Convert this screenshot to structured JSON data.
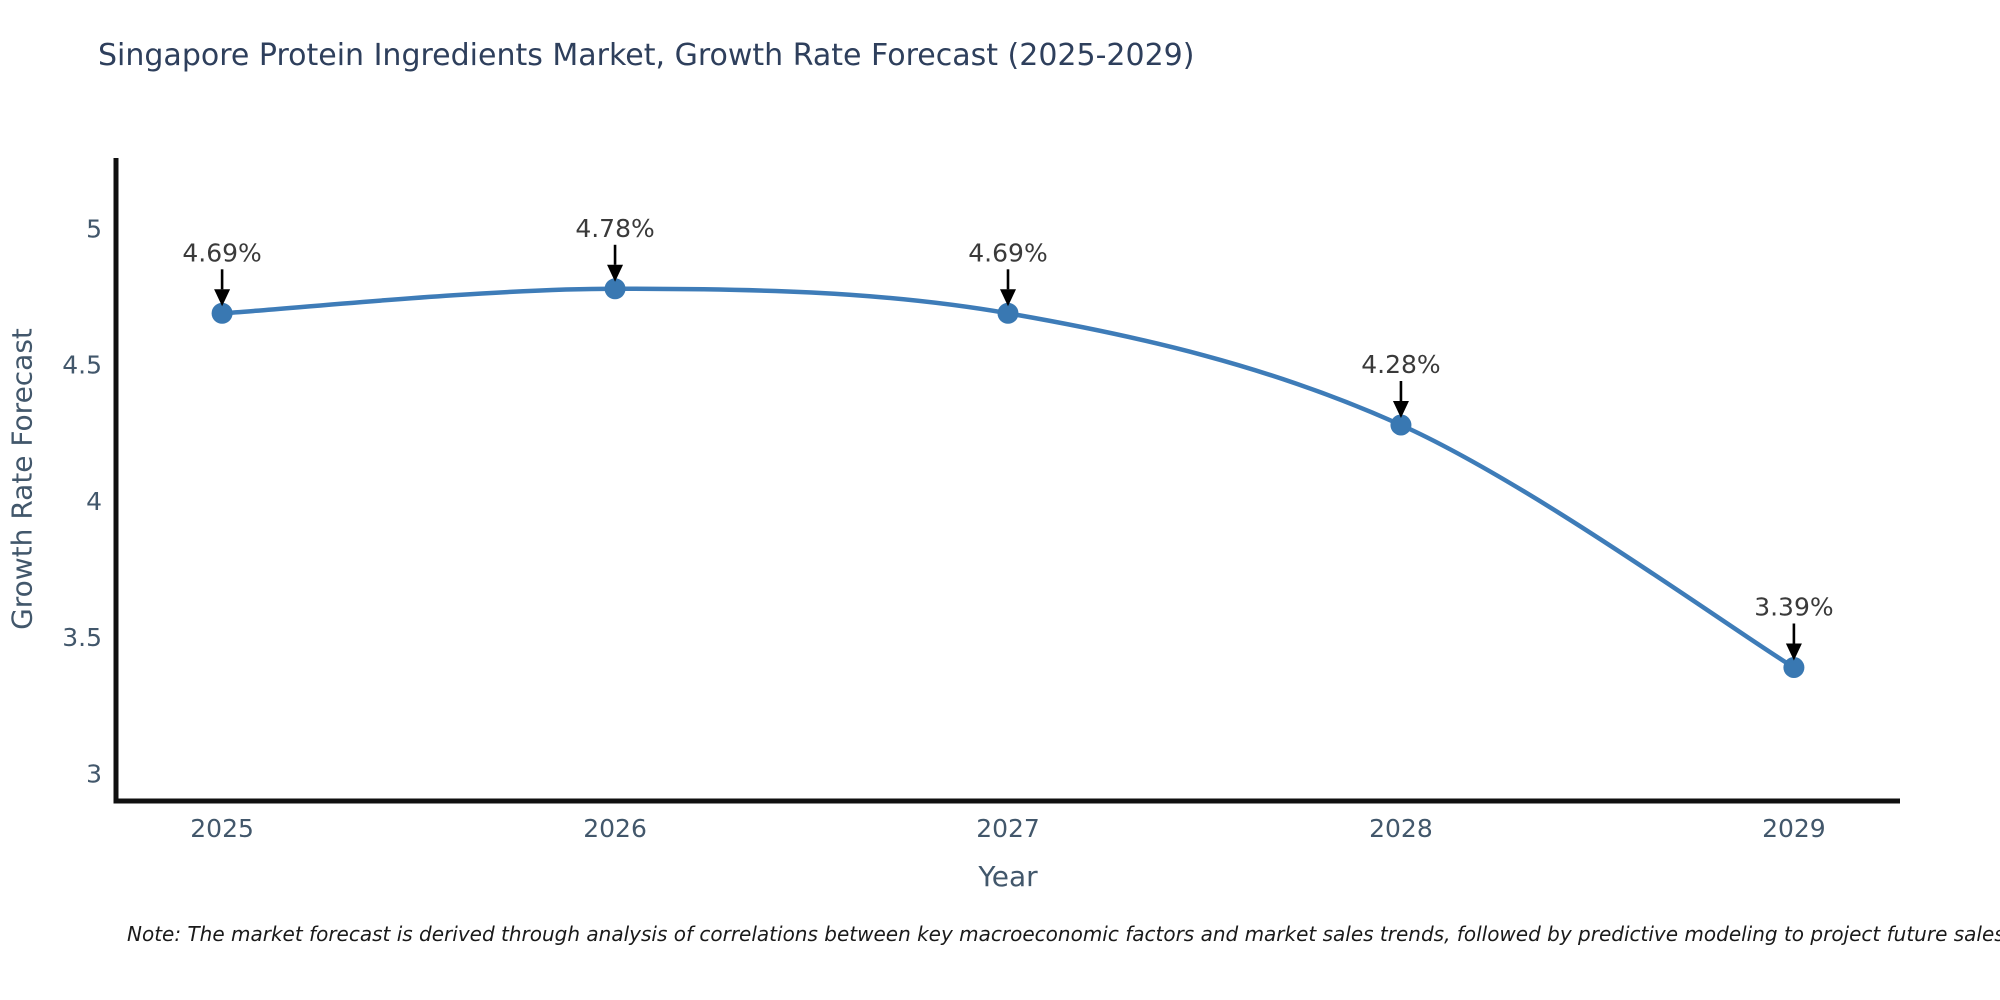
{
  "chart_data": {
    "type": "line",
    "title": "Singapore Protein Ingredients Market, Growth Rate Forecast (2025-2029)",
    "xlabel": "Year",
    "ylabel": "Growth Rate Forecast",
    "x": [
      2025,
      2026,
      2027,
      2028,
      2029
    ],
    "series": [
      {
        "name": "Growth Rate Forecast",
        "values": [
          4.69,
          4.78,
          4.69,
          4.28,
          3.39
        ],
        "point_labels": [
          "4.69%",
          "4.78%",
          "4.69%",
          "4.28%",
          "3.39%"
        ]
      }
    ],
    "x_tick_labels": [
      "2025",
      "2026",
      "2027",
      "2028",
      "2029"
    ],
    "y_ticks": [
      3,
      3.5,
      4,
      4.5,
      5
    ],
    "y_tick_labels": [
      "3",
      "3.5",
      "4",
      "4.5",
      "5"
    ],
    "xlim": [
      2024.73,
      2029.27
    ],
    "ylim": [
      2.9,
      5.26
    ],
    "grid": false,
    "legend": "none",
    "annotation_style": "value label above point with downward arrow",
    "colors": {
      "line": "#3e7cb8",
      "marker": "#3978b2",
      "title_text": "#2e3f5c",
      "axis_tick_text": "#42576b",
      "annotation_text": "#3a3a3a",
      "arrow": "#000000",
      "spine": "#101010",
      "background": "#ffffff"
    },
    "note": "Note: The market forecast is derived through analysis of correlations between key macroeconomic factors and market sales trends, followed by predictive modeling to project future sales"
  }
}
